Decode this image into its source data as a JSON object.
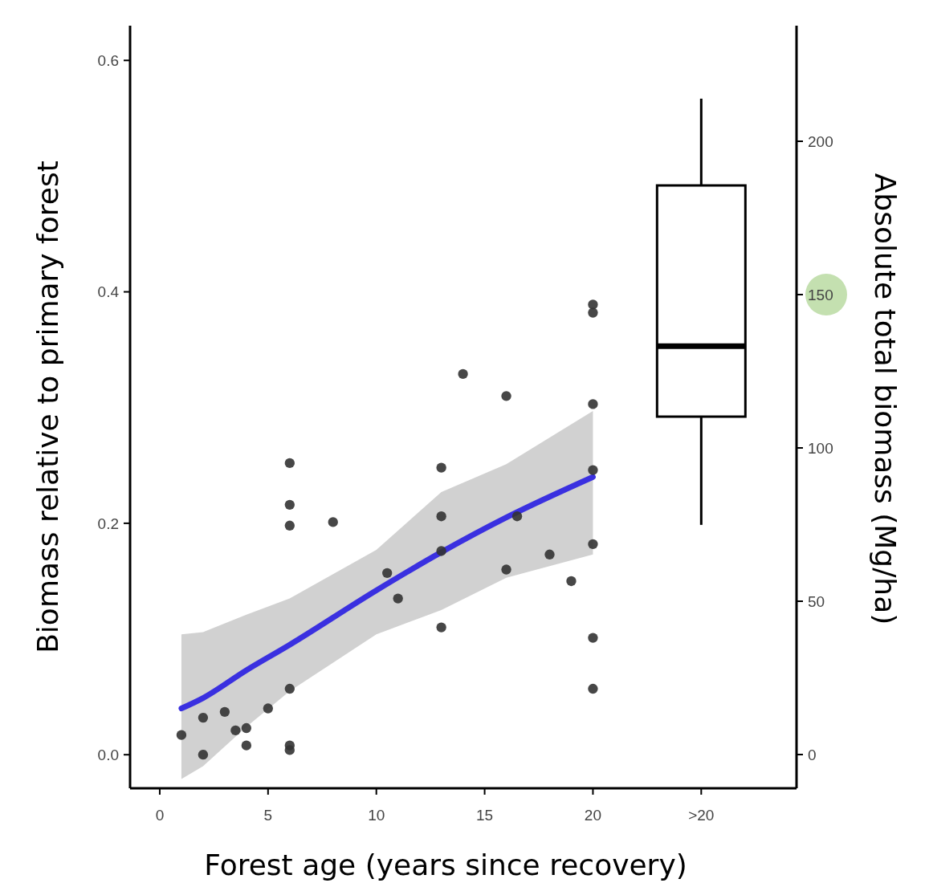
{
  "chart_data": {
    "type": "scatter",
    "xlabel": "Forest age (years since recovery)",
    "ylabel": "Biomass relative to primary forest",
    "y2label": "Absolute total biomass (Mg/ha)",
    "xlim": [
      -1.37,
      29.4
    ],
    "xticks": [
      0,
      5,
      10,
      15,
      20,
      {
        "value": 25,
        "label": ">20"
      }
    ],
    "ylim": [
      -0.029,
      0.63
    ],
    "yticks": [
      {
        "value": 0,
        "label": "0.0"
      },
      0.2,
      0.4,
      0.6
    ],
    "y2lim": [
      -11,
      237.7
    ],
    "y2ticks": [
      0,
      50,
      100,
      150,
      200
    ],
    "grid": false,
    "series": [
      {
        "type": "line",
        "color": "#3a30e0",
        "x": [
          1,
          2,
          4,
          6,
          10,
          13,
          16,
          20
        ],
        "values": [
          0.04,
          0.049,
          0.073,
          0.095,
          0.142,
          0.175,
          0.205,
          0.24
        ],
        "lower": [
          -0.021,
          -0.01,
          0.024,
          0.055,
          0.104,
          0.125,
          0.153,
          0.173
        ],
        "upper": [
          0.104,
          0.106,
          0.121,
          0.135,
          0.177,
          0.227,
          0.251,
          0.297
        ]
      },
      {
        "marker": "circle",
        "color": "#333333",
        "x": [
          1,
          2,
          2,
          3,
          3.5,
          4,
          4,
          5,
          6,
          6,
          6,
          6,
          6,
          6,
          8,
          10.5,
          11,
          13,
          13,
          13,
          13,
          14,
          16,
          16,
          16.5,
          18,
          19,
          20,
          20,
          20,
          20,
          20,
          20,
          20
        ],
        "values": [
          0.017,
          0.032,
          0,
          0.037,
          0.021,
          0.023,
          0.008,
          0.04,
          0.252,
          0.216,
          0.198,
          0.057,
          0.008,
          0.004,
          0.201,
          0.157,
          0.135,
          0.248,
          0.206,
          0.176,
          0.11,
          0.329,
          0.31,
          0.16,
          0.206,
          0.173,
          0.15,
          0.389,
          0.382,
          0.303,
          0.246,
          0.182,
          0.101,
          0.057
        ]
      },
      {
        "type": "box",
        "axis": "y2",
        "color": "#000000",
        "x": [
          25
        ],
        "boxes": [
          {
            "low": 74.9,
            "q1": 110.2,
            "median": 133.2,
            "q3": 185.6,
            "high": 213.9
          }
        ]
      }
    ]
  }
}
